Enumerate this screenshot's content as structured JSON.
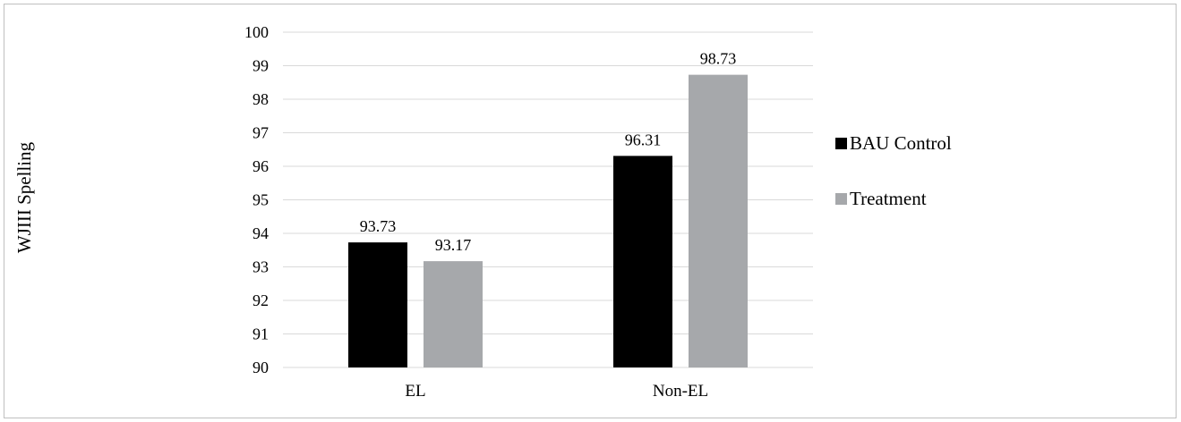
{
  "chart_data": {
    "type": "bar",
    "title": "",
    "xlabel": "",
    "ylabel": "WJIII Spelling",
    "categories": [
      "EL",
      "Non-EL"
    ],
    "series": [
      {
        "name": "BAU Control",
        "values": [
          93.73,
          96.31
        ],
        "labels": [
          "93.73",
          "96.31"
        ],
        "color": "#000000"
      },
      {
        "name": "Treatment",
        "values": [
          93.17,
          98.73
        ],
        "labels": [
          "93.17",
          "98.73"
        ],
        "color": "#a6a8ab"
      }
    ],
    "ylim": [
      90,
      100
    ],
    "yticks": [
      "90",
      "91",
      "92",
      "93",
      "94",
      "95",
      "96",
      "97",
      "98",
      "99",
      "100"
    ],
    "grid": true,
    "legend": "right",
    "gridColor": "#d9d9d9"
  }
}
